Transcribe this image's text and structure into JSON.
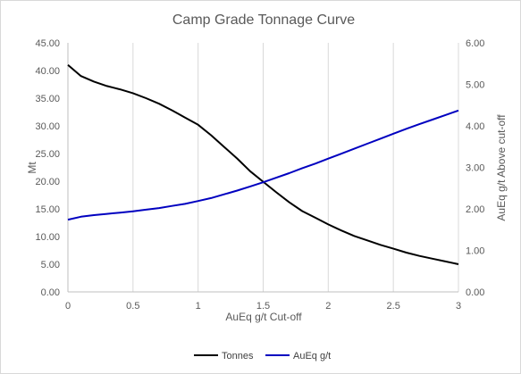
{
  "chart_data": {
    "type": "line",
    "title": "Camp Grade Tonnage Curve",
    "xlabel": "AuEq g/t Cut-off",
    "ylabel": "Mt",
    "y2label": "AuEq  g/t Above cut-off",
    "xlim": [
      0,
      3
    ],
    "ylim": [
      0,
      45
    ],
    "y2lim": [
      0,
      6
    ],
    "x_ticks": [
      "0",
      "0.5",
      "1",
      "1.5",
      "2",
      "2.5",
      "3"
    ],
    "y_ticks": [
      "0.00",
      "5.00",
      "10.00",
      "15.00",
      "20.00",
      "25.00",
      "30.00",
      "35.00",
      "40.00",
      "45.00"
    ],
    "y2_ticks": [
      "0.00",
      "1.00",
      "2.00",
      "3.00",
      "4.00",
      "5.00",
      "6.00"
    ],
    "grid": "vertical",
    "legend_position": "bottom",
    "series": [
      {
        "name": "Tonnes",
        "axis": "left",
        "color": "#000000",
        "x": [
          0,
          0.1,
          0.2,
          0.3,
          0.4,
          0.5,
          0.6,
          0.7,
          0.8,
          0.9,
          1.0,
          1.1,
          1.2,
          1.3,
          1.4,
          1.5,
          1.6,
          1.7,
          1.8,
          1.9,
          2.0,
          2.1,
          2.2,
          2.3,
          2.4,
          2.5,
          2.6,
          2.7,
          2.8,
          2.9,
          3.0
        ],
        "values": [
          41.0,
          39.0,
          38.0,
          37.2,
          36.6,
          35.9,
          35.0,
          34.0,
          32.8,
          31.5,
          30.2,
          28.3,
          26.2,
          24.1,
          21.8,
          19.9,
          18.0,
          16.2,
          14.6,
          13.4,
          12.2,
          11.1,
          10.1,
          9.3,
          8.5,
          7.8,
          7.1,
          6.5,
          6.0,
          5.5,
          5.0
        ]
      },
      {
        "name": "AuEq g/t",
        "axis": "right",
        "color": "#0000c0",
        "x": [
          0,
          0.1,
          0.2,
          0.3,
          0.4,
          0.5,
          0.6,
          0.7,
          0.8,
          0.9,
          1.0,
          1.1,
          1.2,
          1.3,
          1.4,
          1.5,
          1.6,
          1.7,
          1.8,
          1.9,
          2.0,
          2.1,
          2.2,
          2.3,
          2.4,
          2.5,
          2.6,
          2.7,
          2.8,
          2.9,
          3.0
        ],
        "values": [
          1.74,
          1.81,
          1.85,
          1.88,
          1.91,
          1.94,
          1.98,
          2.02,
          2.07,
          2.12,
          2.19,
          2.26,
          2.35,
          2.44,
          2.54,
          2.64,
          2.75,
          2.86,
          2.98,
          3.09,
          3.21,
          3.33,
          3.45,
          3.57,
          3.69,
          3.81,
          3.93,
          4.04,
          4.15,
          4.26,
          4.37
        ]
      }
    ]
  }
}
